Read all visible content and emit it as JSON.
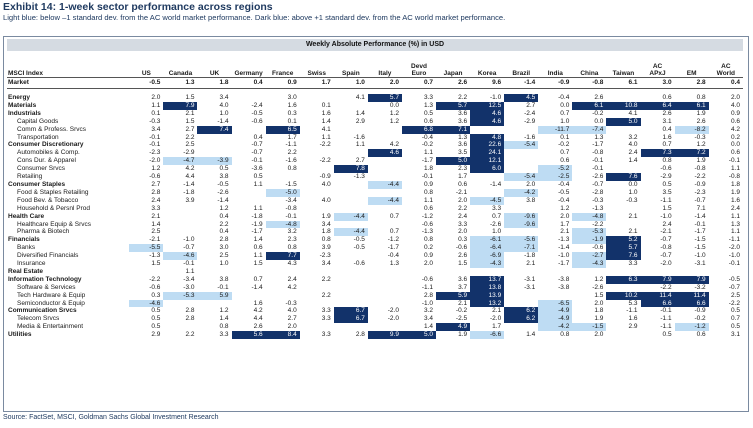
{
  "header": {
    "title": "Exhibit 14: 1-week sector performance across regions",
    "subtitle": "Light blue: below –1 standard dev. from the AC world market performance. Dark blue: above +1 standard dev. from the AC world market performance."
  },
  "table": {
    "banner": "Weekly Absolute Performance (%) in USD",
    "index_label": "MSCI Index",
    "columns": [
      "US",
      "Canada",
      "UK",
      "Germany",
      "France",
      "Swiss",
      "Spain",
      "Italy",
      "Devd\nEuro",
      "Japan",
      "Korea",
      "Brazil",
      "India",
      "China",
      "Taiwan",
      "AC\nAPxJ",
      "EM",
      "AC\nWorld"
    ],
    "legend": {
      "lo": "light blue: below -1 std dev",
      "hi": "dark blue: above +1 std dev"
    },
    "rows": [
      {
        "label": "Market",
        "style": "mkt",
        "values": [
          "-0.5",
          "1.3",
          "1.8",
          "0.4",
          "0.9",
          "1.7",
          "1.0",
          "2.0",
          "0.7",
          "2.6",
          "9.6",
          "-1.4",
          "-0.9",
          "-0.8",
          "6.1",
          "3.0",
          "2.8",
          "0.4"
        ]
      },
      {
        "label": "",
        "style": "gap",
        "values": [
          "",
          "",
          "",
          "",
          "",
          "",
          "",
          "",
          "",
          "",
          "",
          "",
          "",
          "",
          "",
          "",
          "",
          ""
        ]
      },
      {
        "label": "Energy",
        "style": "b",
        "values": [
          "2.0",
          "1.5",
          "3.4",
          "",
          "3.0",
          "",
          "4.1",
          "5.7",
          "3.3",
          "2.2",
          "-1.0",
          "4.5",
          "-0.4",
          "2.6",
          "",
          "0.6",
          "0.8",
          "2.0"
        ],
        "hl": {
          "7": "hi",
          "11": "hi"
        }
      },
      {
        "label": "Materials",
        "style": "b",
        "values": [
          "1.1",
          "7.9",
          "4.0",
          "-2.4",
          "1.6",
          "0.1",
          "",
          "0.0",
          "1.3",
          "5.7",
          "12.5",
          "2.7",
          "0.0",
          "6.1",
          "10.8",
          "6.4",
          "6.1",
          "4.0"
        ],
        "hl": {
          "1": "hi",
          "9": "hi",
          "10": "hi",
          "13": "hi",
          "14": "hi",
          "15": "hi",
          "16": "hi"
        }
      },
      {
        "label": "Industrials",
        "style": "b",
        "values": [
          "0.1",
          "2.1",
          "1.0",
          "-0.5",
          "0.3",
          "1.6",
          "1.4",
          "1.2",
          "0.5",
          "3.6",
          "4.6",
          "-2.4",
          "0.7",
          "-0.2",
          "4.1",
          "2.6",
          "1.9",
          "0.9"
        ],
        "hl": {
          "10": "hi"
        }
      },
      {
        "label": "Capital Goods",
        "style": "i",
        "values": [
          "-0.3",
          "1.5",
          "-1.4",
          "-0.6",
          "0.1",
          "1.4",
          "2.9",
          "1.2",
          "0.6",
          "3.6",
          "4.6",
          "-2.9",
          "1.0",
          "0.0",
          "5.0",
          "3.1",
          "2.6",
          "0.6"
        ],
        "hl": {
          "10": "hi",
          "14": "hi"
        }
      },
      {
        "label": "Comm & Profess. Srvcs",
        "style": "i",
        "values": [
          "3.4",
          "2.7",
          "7.4",
          "",
          "6.5",
          "4.1",
          "",
          "",
          "6.8",
          "7.1",
          "",
          "",
          "-11.7",
          "-7.4",
          "",
          "0.4",
          "-8.2",
          "4.2"
        ],
        "hl": {
          "2": "hi",
          "4": "hi",
          "8": "hi",
          "9": "hi",
          "12": "lo",
          "13": "lo",
          "16": "lo"
        }
      },
      {
        "label": "Transportation",
        "style": "i",
        "values": [
          "-0.1",
          "2.2",
          "",
          "0.4",
          "1.7",
          "1.1",
          "-1.6",
          "",
          "-0.4",
          "1.3",
          "4.8",
          "-1.6",
          "0.1",
          "1.3",
          "3.2",
          "1.6",
          "-0.3",
          "0.2"
        ],
        "hl": {
          "10": "hi"
        }
      },
      {
        "label": "Consumer Discretionary",
        "style": "b",
        "values": [
          "-0.1",
          "2.5",
          "",
          "-0.7",
          "-1.1",
          "-2.2",
          "1.1",
          "4.2",
          "-0.2",
          "3.6",
          "22.6",
          "-5.4",
          "-0.2",
          "-1.7",
          "4.0",
          "0.7",
          "1.2",
          "0.0"
        ],
        "hl": {
          "10": "hi",
          "11": "lo"
        }
      },
      {
        "label": "Automobiles & Comp.",
        "style": "i",
        "values": [
          "-2.3",
          "-2.9",
          "",
          "-0.7",
          "2.2",
          "",
          "",
          "4.6",
          "1.1",
          "3.5",
          "24.1",
          "",
          "0.7",
          "-0.8",
          "2.4",
          "7.3",
          "7.2",
          "0.6"
        ],
        "hl": {
          "7": "hi",
          "10": "hi",
          "15": "hi",
          "16": "hi"
        }
      },
      {
        "label": "Cons Dur. & Apparel",
        "style": "i",
        "values": [
          "-2.0",
          "-4.7",
          "-3.9",
          "-0.1",
          "-1.6",
          "-2.2",
          "2.7",
          "",
          "-1.7",
          "5.0",
          "12.1",
          "",
          "0.6",
          "-0.1",
          "1.4",
          "0.8",
          "1.9",
          "-0.1"
        ],
        "hl": {
          "1": "lo",
          "2": "lo",
          "9": "hi",
          "10": "hi"
        }
      },
      {
        "label": "Consumer Srvcs",
        "style": "i",
        "values": [
          "1.2",
          "4.2",
          "0.5",
          "-3.6",
          "0.8",
          "",
          "7.8",
          "",
          "1.8",
          "2.3",
          "6.0",
          "",
          "-5.2",
          "-0.1",
          "",
          "-0.6",
          "-0.8",
          "1.1"
        ],
        "hl": {
          "6": "hi",
          "10": "hi",
          "12": "lo"
        }
      },
      {
        "label": "Retailing",
        "style": "i",
        "values": [
          "-0.6",
          "4.4",
          "3.8",
          "0.5",
          "",
          "-0.9",
          "-1.3",
          "",
          "-0.1",
          "1.7",
          "",
          "-5.4",
          "-2.5",
          "-2.6",
          "7.6",
          "-2.9",
          "-2.2",
          "-0.8"
        ],
        "hl": {
          "11": "lo",
          "12": "lo",
          "14": "hi"
        }
      },
      {
        "label": "Consumer Staples",
        "style": "b",
        "values": [
          "2.7",
          "-1.4",
          "-0.5",
          "1.1",
          "-1.5",
          "4.0",
          "",
          "-4.4",
          "0.9",
          "0.6",
          "-1.4",
          "2.0",
          "-0.4",
          "-0.7",
          "0.0",
          "0.5",
          "-0.9",
          "1.8"
        ],
        "hl": {
          "7": "lo"
        }
      },
      {
        "label": "Food & Staples Retailing",
        "style": "i",
        "values": [
          "2.8",
          "-1.8",
          "-2.6",
          "",
          "-5.0",
          "",
          "",
          "",
          "0.8",
          "-2.1",
          "",
          "-4.2",
          "-0.5",
          "-2.8",
          "1.0",
          "3.5",
          "-2.3",
          "1.9"
        ],
        "hl": {
          "4": "lo",
          "11": "lo"
        }
      },
      {
        "label": "Food Bev. & Tobacco",
        "style": "i",
        "values": [
          "2.4",
          "3.9",
          "-1.4",
          "",
          "-3.4",
          "4.0",
          "",
          "-4.4",
          "1.1",
          "2.0",
          "-4.5",
          "3.8",
          "-0.4",
          "-0.3",
          "-0.3",
          "-1.1",
          "-0.7",
          "1.6"
        ],
        "hl": {
          "7": "lo",
          "10": "lo"
        }
      },
      {
        "label": "Household & Persnl Prod",
        "style": "i",
        "values": [
          "3.3",
          "",
          "1.2",
          "1.1",
          "-0.8",
          "",
          "",
          "",
          "0.6",
          "2.2",
          "3.3",
          "",
          "1.2",
          "-1.3",
          "",
          "1.5",
          "7.1",
          "2.4"
        ]
      },
      {
        "label": "Health Care",
        "style": "b",
        "values": [
          "2.1",
          "",
          "0.4",
          "-1.8",
          "-0.1",
          "1.9",
          "-4.4",
          "0.7",
          "-1.2",
          "2.4",
          "0.7",
          "-9.6",
          "2.0",
          "-4.8",
          "2.1",
          "-1.0",
          "-1.4",
          "1.1"
        ],
        "hl": {
          "6": "lo",
          "11": "lo",
          "13": "lo"
        }
      },
      {
        "label": "Healthcare Equip & Srvcs",
        "style": "i",
        "values": [
          "1.4",
          "",
          "2.2",
          "-1.9",
          "-4.8",
          "3.4",
          "",
          "",
          "-0.6",
          "3.3",
          "-2.6",
          "-9.6",
          "1.7",
          "-2.2",
          "",
          "2.4",
          "-0.1",
          "1.3"
        ],
        "hl": {
          "4": "lo",
          "11": "lo"
        }
      },
      {
        "label": "Pharma & Biotech",
        "style": "i",
        "values": [
          "2.5",
          "",
          "0.4",
          "-1.7",
          "3.2",
          "1.8",
          "-4.4",
          "0.7",
          "-1.3",
          "2.0",
          "1.0",
          "",
          "2.1",
          "-5.3",
          "2.1",
          "-2.1",
          "-1.7",
          "1.1"
        ],
        "hl": {
          "6": "lo",
          "13": "lo"
        }
      },
      {
        "label": "Financials",
        "style": "b",
        "values": [
          "-2.1",
          "-1.0",
          "2.8",
          "1.4",
          "2.3",
          "0.8",
          "-0.5",
          "-1.2",
          "0.8",
          "0.3",
          "-6.1",
          "-5.6",
          "-1.3",
          "-1.9",
          "5.2",
          "-0.7",
          "-1.5",
          "-1.1"
        ],
        "hl": {
          "10": "lo",
          "11": "lo",
          "13": "lo",
          "14": "hi"
        }
      },
      {
        "label": "Banks",
        "style": "i",
        "values": [
          "-5.5",
          "-0.7",
          "3.0",
          "0.6",
          "0.8",
          "3.9",
          "-0.5",
          "-1.7",
          "0.2",
          "-0.6",
          "-6.4",
          "-7.1",
          "-1.4",
          "-0.6",
          "5.7",
          "-0.8",
          "-1.5",
          "-2.0"
        ],
        "hl": {
          "0": "lo",
          "10": "lo",
          "11": "lo",
          "14": "hi"
        }
      },
      {
        "label": "Diversified Financials",
        "style": "i",
        "values": [
          "-1.3",
          "-4.6",
          "2.5",
          "1.1",
          "7.7",
          "-2.3",
          "",
          "-0.4",
          "0.9",
          "2.6",
          "-6.9",
          "-1.8",
          "-1.0",
          "-2.7",
          "7.6",
          "-0.7",
          "-1.0",
          "-1.0"
        ],
        "hl": {
          "1": "lo",
          "4": "hi",
          "10": "lo",
          "13": "lo",
          "14": "hi"
        }
      },
      {
        "label": "Insurance",
        "style": "i",
        "values": [
          "1.5",
          "-0.1",
          "1.0",
          "1.5",
          "4.3",
          "3.4",
          "-0.6",
          "1.3",
          "2.0",
          "1.5",
          "-4.3",
          "2.1",
          "-1.7",
          "-4.3",
          "3.3",
          "-2.0",
          "-3.1",
          "-0.1"
        ],
        "hl": {
          "10": "lo",
          "13": "lo"
        }
      },
      {
        "label": "Real Estate",
        "style": "b",
        "values": [
          "",
          "1.1",
          "",
          "",
          "",
          "",
          "",
          "",
          "",
          "",
          "",
          "",
          "",
          "",
          "",
          "",
          "",
          ""
        ]
      },
      {
        "label": "Information Technology",
        "style": "b",
        "values": [
          "-2.2",
          "-3.4",
          "3.8",
          "0.7",
          "2.4",
          "2.2",
          "",
          "",
          "-0.6",
          "3.6",
          "13.7",
          "-3.1",
          "-3.8",
          "1.2",
          "6.3",
          "7.9",
          "7.9",
          "-0.5"
        ],
        "hl": {
          "10": "hi",
          "14": "hi",
          "15": "hi",
          "16": "hi"
        }
      },
      {
        "label": "Software & Services",
        "style": "i",
        "values": [
          "-0.6",
          "-3.0",
          "-0.1",
          "-1.4",
          "4.2",
          "",
          "",
          "",
          "-1.1",
          "3.7",
          "13.8",
          "-3.1",
          "-3.8",
          "-2.6",
          "",
          "-2.2",
          "-3.2",
          "-0.7"
        ],
        "hl": {
          "10": "hi"
        }
      },
      {
        "label": "Tech Hardware & Equip",
        "style": "i",
        "values": [
          "0.3",
          "-5.3",
          "5.9",
          "",
          "",
          "2.2",
          "",
          "",
          "2.8",
          "5.9",
          "13.9",
          "",
          "",
          "1.5",
          "10.2",
          "11.4",
          "11.4",
          "2.5"
        ],
        "hl": {
          "1": "lo",
          "2": "lo",
          "9": "hi",
          "10": "hi",
          "14": "hi",
          "15": "hi",
          "16": "hi"
        }
      },
      {
        "label": "Semiconductor & Equip",
        "style": "i",
        "values": [
          "-4.6",
          "",
          "",
          "1.6",
          "-0.3",
          "",
          "",
          "",
          "-1.0",
          "2.1",
          "13.2",
          "",
          "-6.5",
          "2.0",
          "5.3",
          "6.6",
          "6.6",
          "-2.2"
        ],
        "hl": {
          "0": "lo",
          "10": "hi",
          "12": "lo",
          "15": "hi",
          "16": "hi"
        }
      },
      {
        "label": "Communication Srvcs",
        "style": "b",
        "values": [
          "0.5",
          "2.8",
          "1.2",
          "4.2",
          "4.0",
          "3.3",
          "6.7",
          "-2.0",
          "3.2",
          "-0.2",
          "2.1",
          "6.2",
          "-4.9",
          "1.8",
          "-1.1",
          "-0.1",
          "-0.9",
          "0.5"
        ],
        "hl": {
          "6": "hi",
          "11": "hi",
          "12": "lo"
        }
      },
      {
        "label": "Telecom Srvcs",
        "style": "i",
        "values": [
          "0.5",
          "2.8",
          "1.4",
          "4.4",
          "2.7",
          "3.3",
          "6.7",
          "-2.0",
          "3.4",
          "-2.5",
          "-2.0",
          "6.2",
          "-4.9",
          "1.9",
          "1.6",
          "-1.1",
          "-0.2",
          "0.7"
        ],
        "hl": {
          "6": "hi",
          "11": "hi",
          "12": "lo"
        }
      },
      {
        "label": "Media & Entertainment",
        "style": "i",
        "values": [
          "0.5",
          "",
          "0.8",
          "2.6",
          "2.0",
          "",
          "",
          "",
          "1.4",
          "4.9",
          "1.7",
          "",
          "-4.2",
          "-1.5",
          "2.9",
          "-1.1",
          "-1.2",
          "0.5"
        ],
        "hl": {
          "9": "hi",
          "12": "lo",
          "13": "lo",
          "16": "lo"
        }
      },
      {
        "label": "Utilities",
        "style": "b",
        "values": [
          "2.9",
          "2.2",
          "3.3",
          "5.6",
          "8.4",
          "3.3",
          "2.8",
          "9.9",
          "5.0",
          "1.9",
          "-6.6",
          "1.4",
          "0.8",
          "2.0",
          "",
          "0.5",
          "0.6",
          "3.1"
        ],
        "hl": {
          "3": "hi",
          "4": "hi",
          "7": "hi",
          "8": "hi",
          "10": "lo"
        }
      }
    ]
  },
  "footer": {
    "source": "Source: FactSet, MSCI, Goldman Sachs Global Investment Research"
  }
}
